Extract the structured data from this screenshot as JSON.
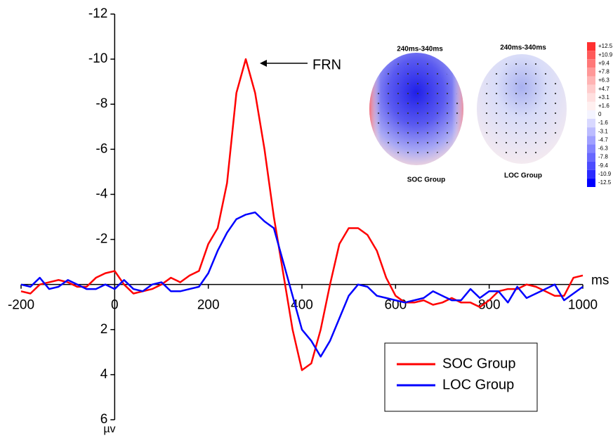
{
  "chart_data": {
    "type": "line",
    "x_label": "ms",
    "y_label": "µv",
    "xlim": [
      -200,
      1000
    ],
    "ylim": [
      6,
      -12
    ],
    "xticks": [
      -200,
      0,
      200,
      400,
      600,
      800,
      1000
    ],
    "yticks": [
      -12,
      -10,
      -8,
      -6,
      -4,
      -2,
      2,
      4,
      6
    ],
    "x": [
      -200,
      -180,
      -160,
      -140,
      -120,
      -100,
      -80,
      -60,
      -40,
      -20,
      0,
      20,
      40,
      60,
      80,
      100,
      120,
      140,
      160,
      180,
      200,
      220,
      240,
      260,
      280,
      300,
      320,
      340,
      360,
      380,
      400,
      420,
      440,
      460,
      480,
      500,
      520,
      540,
      560,
      580,
      600,
      620,
      640,
      660,
      680,
      700,
      720,
      740,
      760,
      780,
      800,
      820,
      840,
      860,
      880,
      900,
      920,
      940,
      960,
      980,
      1000
    ],
    "series": [
      {
        "name": "SOC Group",
        "color": "#ff0000",
        "values": [
          0.3,
          0.4,
          0.0,
          -0.1,
          -0.2,
          -0.1,
          0.1,
          0.1,
          -0.3,
          -0.5,
          -0.6,
          0.0,
          0.4,
          0.3,
          0.2,
          0.0,
          -0.3,
          -0.1,
          -0.4,
          -0.6,
          -1.8,
          -2.5,
          -4.5,
          -8.5,
          -10.0,
          -8.5,
          -6.0,
          -3.0,
          -0.5,
          2.0,
          3.8,
          3.5,
          2.0,
          0.0,
          -1.8,
          -2.5,
          -2.5,
          -2.2,
          -1.5,
          -0.3,
          0.5,
          0.8,
          0.8,
          0.7,
          0.9,
          0.8,
          0.6,
          0.8,
          0.8,
          1.0,
          0.7,
          0.3,
          0.2,
          0.2,
          0.0,
          0.1,
          0.3,
          0.5,
          0.5,
          -0.3,
          -0.4
        ]
      },
      {
        "name": "LOC Group",
        "color": "#0000ff",
        "values": [
          0.0,
          0.1,
          -0.3,
          0.2,
          0.1,
          -0.2,
          0.0,
          0.2,
          0.2,
          0.0,
          0.2,
          -0.2,
          0.2,
          0.3,
          0.0,
          -0.1,
          0.3,
          0.3,
          0.2,
          0.1,
          -0.5,
          -1.5,
          -2.3,
          -2.9,
          -3.1,
          -3.2,
          -2.8,
          -2.5,
          -1.0,
          0.5,
          2.0,
          2.5,
          3.2,
          2.5,
          1.5,
          0.5,
          0.0,
          0.1,
          0.5,
          0.6,
          0.7,
          0.8,
          0.7,
          0.6,
          0.3,
          0.5,
          0.7,
          0.7,
          0.2,
          0.6,
          0.3,
          0.3,
          0.8,
          0.1,
          0.6,
          0.4,
          0.2,
          0.0,
          0.7,
          0.4,
          0.1
        ]
      }
    ],
    "annotation": "FRN",
    "insets": [
      {
        "title": "240ms-340ms",
        "label": "SOC Group"
      },
      {
        "title": "240ms-340ms",
        "label": "LOC Group"
      }
    ],
    "colorbar": {
      "labels": [
        "+12.5",
        "+10.9",
        "+9.4",
        "+7.8",
        "+6.3",
        "+4.7",
        "+3.1",
        "+1.6",
        "0",
        "-1.6",
        "-3.1",
        "-4.7",
        "-6.3",
        "-7.8",
        "-9.4",
        "-10.9",
        "-12.5"
      ],
      "colors": [
        "#ff3030",
        "#ff5a5a",
        "#ff7878",
        "#ff9898",
        "#ffb4b4",
        "#ffcccc",
        "#ffe0e0",
        "#fff0f0",
        "#f4f4ff",
        "#d8d8ff",
        "#bcbcff",
        "#a0a0ff",
        "#8484ff",
        "#6868ff",
        "#4c4cff",
        "#2a2aff",
        "#0000ff"
      ]
    }
  }
}
